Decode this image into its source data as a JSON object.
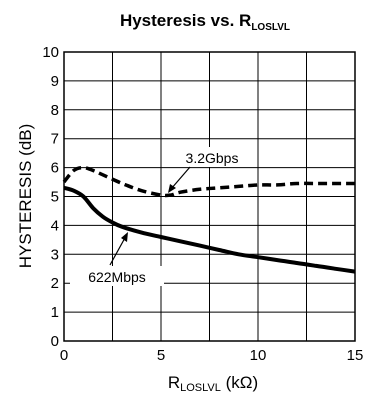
{
  "chart_data": {
    "type": "line",
    "title": "Hysteresis vs. R",
    "title_subscript": "LOSLVL",
    "xlabel": "R",
    "xlabel_subscript": "LOSLVL",
    "xlabel_unit": " (kΩ)",
    "ylabel": "HYSTERESIS (dB)",
    "xlim": [
      0,
      15
    ],
    "ylim": [
      0,
      10
    ],
    "xticks": [
      "0",
      "5",
      "10",
      "15"
    ],
    "yticks": [
      "0",
      "1",
      "2",
      "3",
      "4",
      "5",
      "6",
      "7",
      "8",
      "9",
      "10"
    ],
    "grid": true,
    "series": [
      {
        "name": "3.2Gbps",
        "style": "dashed",
        "x": [
          0,
          0.5,
          1,
          1.5,
          2,
          3,
          4,
          5,
          5.5,
          6,
          7,
          8,
          9,
          10,
          11,
          12,
          13,
          14,
          15
        ],
        "y": [
          5.5,
          5.9,
          6.0,
          5.9,
          5.75,
          5.45,
          5.2,
          5.05,
          5.05,
          5.15,
          5.25,
          5.3,
          5.35,
          5.4,
          5.4,
          5.45,
          5.45,
          5.45,
          5.45
        ]
      },
      {
        "name": "622Mbps",
        "style": "solid",
        "x": [
          0,
          0.5,
          1,
          1.5,
          2,
          2.5,
          3,
          4,
          5,
          6,
          7,
          8,
          9,
          10,
          11,
          12,
          13,
          14,
          15
        ],
        "y": [
          5.3,
          5.2,
          5.0,
          4.6,
          4.3,
          4.1,
          3.95,
          3.75,
          3.6,
          3.45,
          3.3,
          3.15,
          3.0,
          2.9,
          2.8,
          2.7,
          2.6,
          2.5,
          2.4
        ]
      }
    ],
    "annotations": [
      "3.2Gbps",
      "622Mbps"
    ]
  }
}
